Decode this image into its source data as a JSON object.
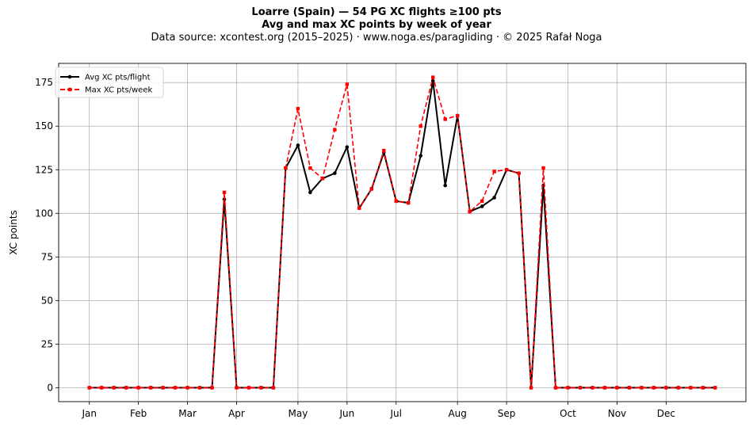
{
  "chart_data": {
    "type": "line",
    "title": "Loarre (Spain)  —  54 PG XC flights ≥100 pts",
    "subtitle": "Avg and max XC points by week of year",
    "source": "Data source: xcontest.org (2015–2025)  ·  www.noga.es/paragliding  ·  © 2025 Rafał Noga",
    "xlabel": "",
    "ylabel": "XC points",
    "ylim": [
      -8,
      186
    ],
    "yticks": [
      0,
      25,
      50,
      75,
      100,
      125,
      150,
      175
    ],
    "xlim": [
      -2.5,
      53.5
    ],
    "xticks": [
      {
        "label": "Jan",
        "week": 0
      },
      {
        "label": "Feb",
        "week": 4
      },
      {
        "label": "Mar",
        "week": 8
      },
      {
        "label": "Apr",
        "week": 12
      },
      {
        "label": "May",
        "week": 17
      },
      {
        "label": "Jun",
        "week": 21
      },
      {
        "label": "Jul",
        "week": 25
      },
      {
        "label": "Aug",
        "week": 30
      },
      {
        "label": "Sep",
        "week": 34
      },
      {
        "label": "Oct",
        "week": 39
      },
      {
        "label": "Nov",
        "week": 43
      },
      {
        "label": "Dec",
        "week": 47
      }
    ],
    "grid": true,
    "legend_position": "top-left",
    "series": [
      {
        "name": "Avg XC pts/flight",
        "color": "#000000",
        "style": "solid",
        "marker": "circle",
        "x": [
          0,
          1,
          2,
          3,
          4,
          5,
          6,
          7,
          8,
          9,
          10,
          11,
          12,
          13,
          14,
          15,
          16,
          17,
          18,
          19,
          20,
          21,
          22,
          23,
          24,
          25,
          26,
          27,
          28,
          29,
          30,
          31,
          32,
          33,
          34,
          35,
          36,
          37,
          38,
          39,
          40,
          41,
          42,
          43,
          44,
          45,
          46,
          47,
          48,
          49,
          50,
          51
        ],
        "values": [
          0,
          0,
          0,
          0,
          0,
          0,
          0,
          0,
          0,
          0,
          0,
          108,
          0,
          0,
          0,
          0,
          126,
          139,
          112,
          120,
          123,
          138,
          103,
          114,
          135,
          107,
          106,
          133,
          176,
          116,
          156,
          101,
          104,
          109,
          125,
          123,
          0,
          116,
          0,
          0,
          0,
          0,
          0,
          0,
          0,
          0,
          0,
          0,
          0,
          0,
          0,
          0
        ]
      },
      {
        "name": "Max XC pts/week",
        "color": "#ff0000",
        "style": "dashed",
        "marker": "square",
        "x": [
          0,
          1,
          2,
          3,
          4,
          5,
          6,
          7,
          8,
          9,
          10,
          11,
          12,
          13,
          14,
          15,
          16,
          17,
          18,
          19,
          20,
          21,
          22,
          23,
          24,
          25,
          26,
          27,
          28,
          29,
          30,
          31,
          32,
          33,
          34,
          35,
          36,
          37,
          38,
          39,
          40,
          41,
          42,
          43,
          44,
          45,
          46,
          47,
          48,
          49,
          50,
          51
        ],
        "values": [
          0,
          0,
          0,
          0,
          0,
          0,
          0,
          0,
          0,
          0,
          0,
          112,
          0,
          0,
          0,
          0,
          126,
          160,
          126,
          120,
          148,
          174,
          103,
          114,
          136,
          107,
          106,
          150,
          178,
          154,
          156,
          101,
          107,
          124,
          125,
          123,
          0,
          126,
          0,
          0,
          0,
          0,
          0,
          0,
          0,
          0,
          0,
          0,
          0,
          0,
          0,
          0
        ]
      }
    ]
  }
}
